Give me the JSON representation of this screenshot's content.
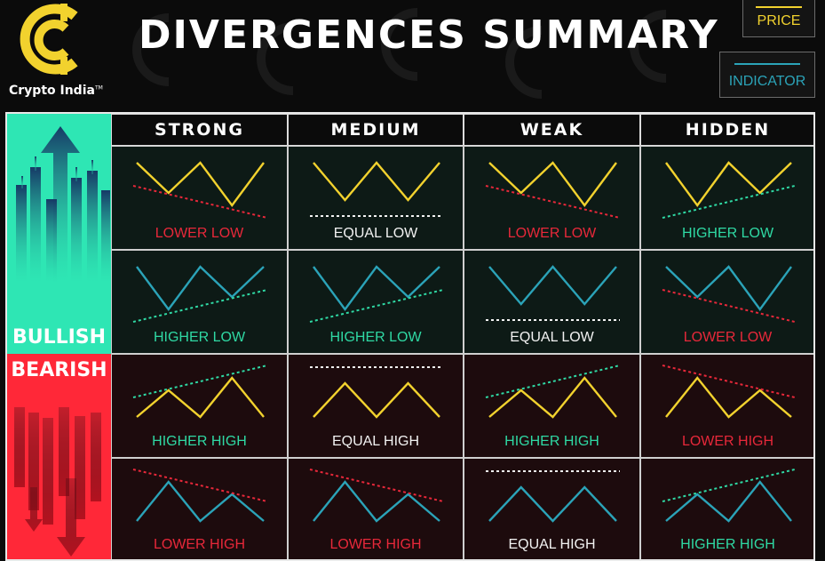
{
  "brand": {
    "name": "Crypto India",
    "trademark": "TM"
  },
  "title": "DIVERGENCES SUMMARY",
  "legend": {
    "price": "PRICE",
    "indicator": "INDICATOR"
  },
  "columns": [
    "STRONG",
    "MEDIUM",
    "WEAK",
    "HIDDEN"
  ],
  "sides": {
    "bullish": "BULLISH",
    "bearish": "BEARISH"
  },
  "colors": {
    "price": "#f2d22e",
    "indicator": "#2ba3b8",
    "bullish": "#2ee6b4",
    "bearish": "#ff2838",
    "label_red": "#e8283a",
    "label_green": "#2fd9a4"
  },
  "rows": [
    {
      "side": "bullish",
      "series": "price",
      "cells": [
        {
          "shape": "valley",
          "trend": "down",
          "label": "LOWER LOW",
          "label_color": "red"
        },
        {
          "shape": "valley",
          "trend": "flat",
          "label": "EQUAL LOW",
          "label_color": "white"
        },
        {
          "shape": "valley",
          "trend": "down",
          "label": "LOWER LOW",
          "label_color": "red"
        },
        {
          "shape": "valley",
          "trend": "up",
          "label": "HIGHER LOW",
          "label_color": "green"
        }
      ]
    },
    {
      "side": "bullish",
      "series": "indicator",
      "cells": [
        {
          "shape": "valley",
          "trend": "up",
          "label": "HIGHER LOW",
          "label_color": "green"
        },
        {
          "shape": "valley",
          "trend": "up",
          "label": "HIGHER LOW",
          "label_color": "green"
        },
        {
          "shape": "valley",
          "trend": "flat",
          "label": "EQUAL LOW",
          "label_color": "white"
        },
        {
          "shape": "valley",
          "trend": "down",
          "label": "LOWER LOW",
          "label_color": "red"
        }
      ]
    },
    {
      "side": "bearish",
      "series": "price",
      "cells": [
        {
          "shape": "peak",
          "trend": "up",
          "label": "HIGHER HIGH",
          "label_color": "green"
        },
        {
          "shape": "peak",
          "trend": "flat",
          "label": "EQUAL HIGH",
          "label_color": "white"
        },
        {
          "shape": "peak",
          "trend": "up",
          "label": "HIGHER HIGH",
          "label_color": "green"
        },
        {
          "shape": "peak",
          "trend": "down",
          "label": "LOWER HIGH",
          "label_color": "red"
        }
      ]
    },
    {
      "side": "bearish",
      "series": "indicator",
      "cells": [
        {
          "shape": "peak",
          "trend": "down",
          "label": "LOWER HIGH",
          "label_color": "red"
        },
        {
          "shape": "peak",
          "trend": "down",
          "label": "LOWER HIGH",
          "label_color": "red"
        },
        {
          "shape": "peak",
          "trend": "flat",
          "label": "EQUAL HIGH",
          "label_color": "white"
        },
        {
          "shape": "peak",
          "trend": "up",
          "label": "HIGHER HIGH",
          "label_color": "green"
        }
      ]
    }
  ]
}
